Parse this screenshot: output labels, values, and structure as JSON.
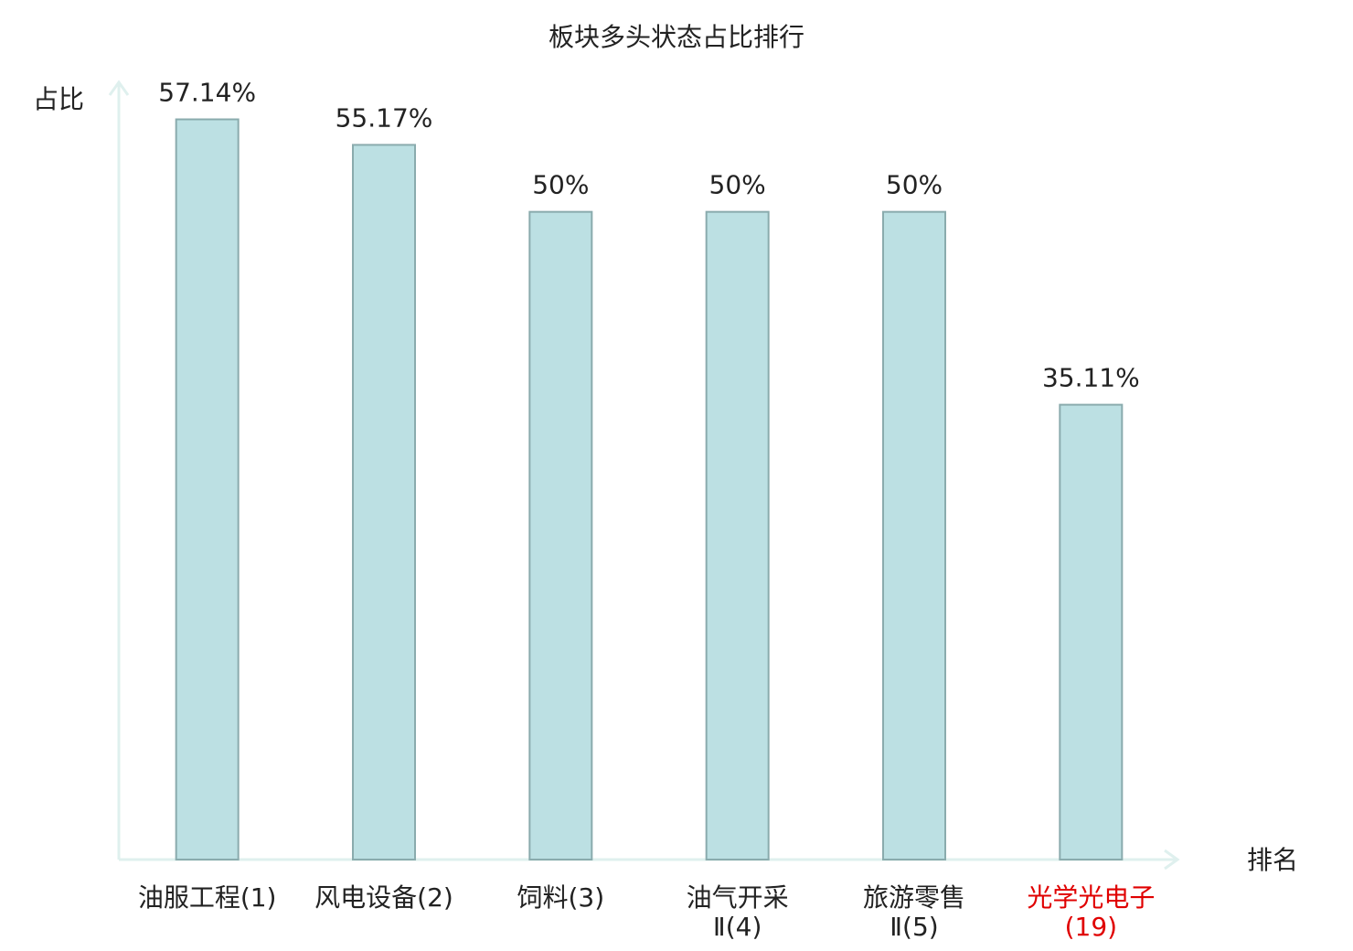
{
  "chart_data": {
    "type": "bar",
    "title": "板块多头状态占比排行",
    "y_label": "占比",
    "x_label": "排名",
    "categories": [
      "油服工程(1)",
      "风电设备(2)",
      "饲料(3)",
      "油气开采Ⅱ(4)",
      "旅游零售Ⅱ(5)",
      "光学光电子(19)"
    ],
    "category_colors": [
      "#222222",
      "#222222",
      "#222222",
      "#222222",
      "#222222",
      "#e00000"
    ],
    "values": [
      57.14,
      55.17,
      50,
      50,
      50,
      35.11
    ],
    "value_labels": [
      "57.14%",
      "55.17%",
      "50%",
      "50%",
      "50%",
      "35.11%"
    ],
    "color": "#bce0e3",
    "edge_color": "#8aabad",
    "ylim": [
      0,
      60
    ],
    "grid": false
  }
}
